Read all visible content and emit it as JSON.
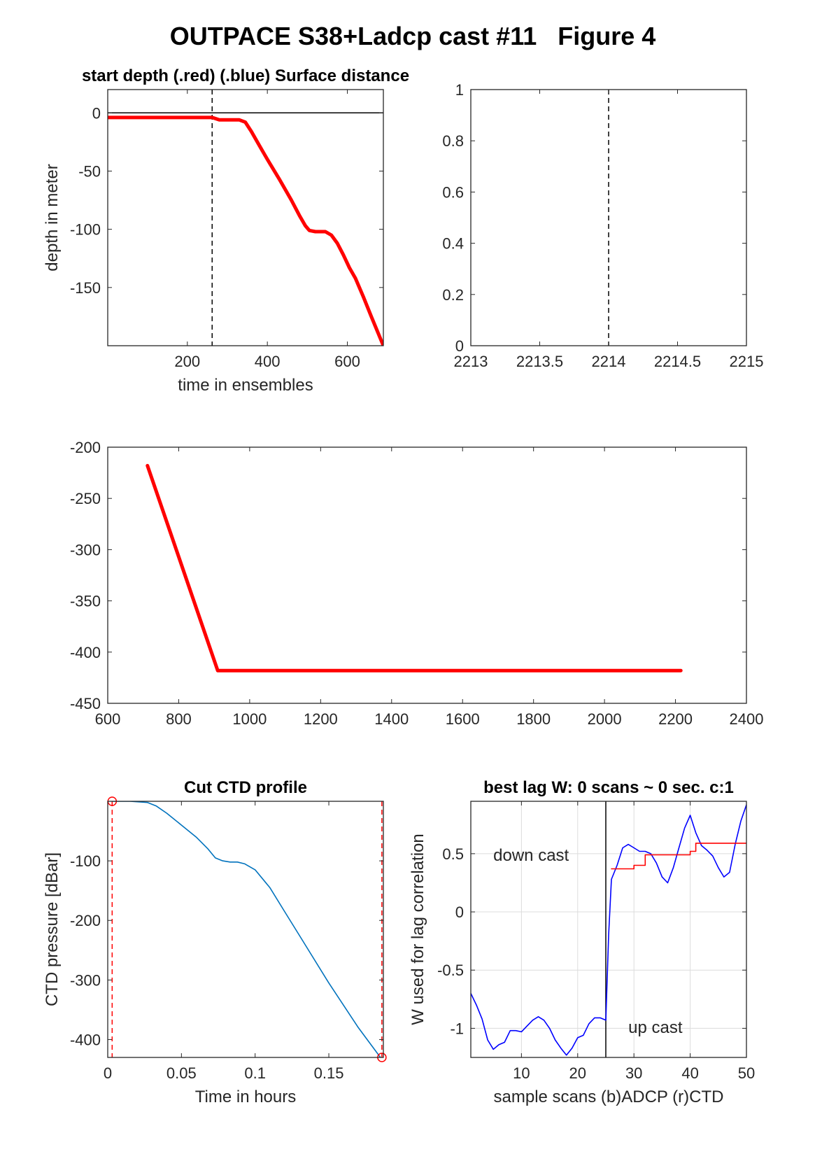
{
  "figure": {
    "title": "OUTPACE S38+Ladcp cast #11   Figure 4"
  },
  "chart_data": [
    {
      "id": "depth",
      "type": "line",
      "title": "start depth (.red) (.blue) Surface distance",
      "xlabel": "time in ensembles",
      "ylabel": "depth in meter",
      "xlim": [
        1,
        690
      ],
      "ylim": [
        -200,
        20
      ],
      "xticks": [
        200,
        400,
        600
      ],
      "yticks": [
        0,
        -50,
        -100,
        -150
      ],
      "grid": false,
      "series": [
        {
          "color": "#ff0000",
          "x": [
            1,
            100,
            200,
            262,
            280,
            300,
            330,
            345,
            360,
            380,
            400,
            430,
            460,
            480,
            495,
            505,
            520,
            545,
            560,
            575,
            590,
            605,
            620,
            640,
            660,
            690
          ],
          "y": [
            -4,
            -4,
            -4,
            -4,
            -6,
            -6,
            -6,
            -8,
            -16,
            -28,
            -40,
            -57,
            -75,
            -88,
            -97,
            -101,
            -102,
            -102,
            -105,
            -112,
            -122,
            -133,
            -142,
            -158,
            -175,
            -200
          ]
        }
      ],
      "hline": 0,
      "vline_dashed": 262
    },
    {
      "id": "surface",
      "type": "line",
      "xlim": [
        2213,
        2215
      ],
      "ylim": [
        0,
        1
      ],
      "xticks": [
        2213,
        2213.5,
        2214,
        2214.5,
        2215
      ],
      "yticks": [
        0,
        0.2,
        0.4,
        0.6,
        0.8,
        1
      ],
      "grid": false,
      "series": [],
      "vline_dashed": 2214
    },
    {
      "id": "path",
      "type": "line",
      "xlim": [
        600,
        2400
      ],
      "ylim": [
        -450,
        -200
      ],
      "xticks": [
        600,
        800,
        1000,
        1200,
        1400,
        1600,
        1800,
        2000,
        2200,
        2400
      ],
      "yticks": [
        -200,
        -250,
        -300,
        -350,
        -400,
        -450
      ],
      "grid": false,
      "series": [
        {
          "color": "#ff0000",
          "x": [
            712,
            910,
            2215
          ],
          "y": [
            -218,
            -418,
            -418
          ]
        }
      ]
    },
    {
      "id": "ctd",
      "type": "line",
      "title": "Cut CTD profile",
      "xlabel": "Time in hours",
      "ylabel": "CTD pressure [dBar]",
      "xlim": [
        0,
        0.187
      ],
      "ylim": [
        -430,
        0
      ],
      "xticks": [
        0,
        0.05,
        0.1,
        0.15
      ],
      "yticks": [
        -100,
        -200,
        -300,
        -400
      ],
      "grid": false,
      "series": [
        {
          "color": "#0072bd",
          "x": [
            0.003,
            0.015,
            0.027,
            0.033,
            0.04,
            0.05,
            0.06,
            0.068,
            0.073,
            0.078,
            0.083,
            0.088,
            0.093,
            0.1,
            0.11,
            0.12,
            0.13,
            0.15,
            0.17,
            0.185
          ],
          "y": [
            0,
            0,
            -2,
            -8,
            -20,
            -40,
            -60,
            -80,
            -95,
            -100,
            -102,
            -102,
            -105,
            -115,
            -145,
            -185,
            -225,
            -305,
            -380,
            -430
          ]
        }
      ],
      "markers": [
        {
          "x": 0.003,
          "y": 0
        },
        {
          "x": 0.186,
          "y": -430
        }
      ],
      "vlines_dashed": [
        0.003,
        0.186
      ]
    },
    {
      "id": "lag",
      "type": "line",
      "title": "best lag W: 0 scans ~ 0 sec.  c:1",
      "xlabel": "sample scans (b)ADCP (r)CTD",
      "ylabel": "W used for lag correlation",
      "xlim": [
        1,
        50
      ],
      "ylim": [
        -1.25,
        0.95
      ],
      "xticks": [
        10,
        20,
        30,
        40,
        50
      ],
      "yticks": [
        0.5,
        0,
        -0.5,
        -1
      ],
      "grid": true,
      "annotations": [
        {
          "text": "down cast",
          "x": 5,
          "y": 0.44
        },
        {
          "text": "up cast",
          "x": 29,
          "y": -1.04
        }
      ],
      "vline_solid": 25,
      "series": [
        {
          "color": "#0000ff",
          "x": [
            1,
            2,
            3,
            4,
            5,
            6,
            7,
            8,
            9,
            10,
            11,
            12,
            13,
            14,
            15,
            16,
            17,
            18,
            19,
            20,
            21,
            22,
            23,
            24,
            25,
            25.5,
            26,
            27,
            28,
            29,
            30,
            31,
            32,
            33,
            34,
            35,
            36,
            37,
            38,
            39,
            40,
            41,
            42,
            43,
            44,
            45,
            46,
            47,
            48,
            49,
            50
          ],
          "y": [
            -0.7,
            -0.8,
            -0.92,
            -1.1,
            -1.18,
            -1.14,
            -1.12,
            -1.02,
            -1.02,
            -1.03,
            -0.98,
            -0.93,
            -0.9,
            -0.93,
            -1.0,
            -1.1,
            -1.17,
            -1.23,
            -1.17,
            -1.08,
            -1.06,
            -0.96,
            -0.91,
            -0.91,
            -0.93,
            -0.2,
            0.28,
            0.4,
            0.55,
            0.58,
            0.55,
            0.52,
            0.52,
            0.5,
            0.42,
            0.3,
            0.25,
            0.38,
            0.55,
            0.72,
            0.83,
            0.68,
            0.57,
            0.53,
            0.48,
            0.38,
            0.3,
            0.34,
            0.58,
            0.78,
            0.92
          ]
        },
        {
          "color": "#ff0000",
          "x": [
            26,
            30,
            30,
            32,
            32,
            40,
            40,
            41,
            41,
            50
          ],
          "y": [
            0.37,
            0.37,
            0.4,
            0.4,
            0.49,
            0.49,
            0.52,
            0.52,
            0.59,
            0.59
          ]
        }
      ]
    }
  ]
}
